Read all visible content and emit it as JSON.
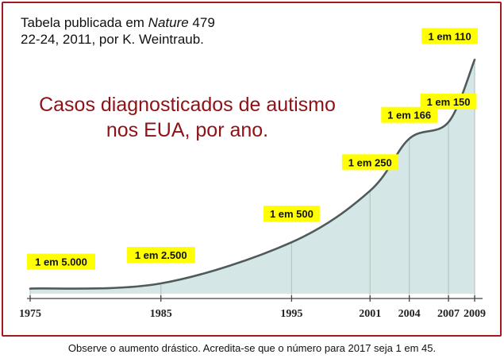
{
  "source_note": {
    "line1_prefix": "Tabela publicada em ",
    "line1_italic": "Nature",
    "line1_suffix": " 479",
    "line2": "22-24, 2011, por K. Weintraub."
  },
  "caption": "Observe o aumento drástico. Acredita-se que o número para 2017 seja 1 em 45.",
  "colors": {
    "frame": "#a11a1f",
    "title": "#8e1216",
    "fill": "#d4e6e6",
    "curve": "#4f5b5a",
    "label_bg": "#ffff00"
  },
  "chart_data": {
    "type": "area",
    "title": "Casos diagnosticados de autismo nos EUA, por ano.",
    "title_lines": [
      "Casos diagnosticados de autismo",
      "nos EUA, por ano."
    ],
    "x": [
      1975,
      1985,
      1995,
      2001,
      2004,
      2007,
      2009
    ],
    "x_tick_labels": [
      "1975",
      "1985",
      "1995",
      "2001",
      "2004",
      "2007",
      "2009"
    ],
    "labels": [
      "1 em 5.000",
      "1 em 2.500",
      "1 em 500",
      "1 em 250",
      "1 em 166",
      "1 em 150",
      "1 em 110"
    ],
    "y": [
      0.0002,
      0.0004,
      0.002,
      0.004,
      0.006024,
      0.006667,
      0.009091
    ],
    "xlim": [
      1975,
      2009
    ],
    "ylim": [
      0,
      0.0095
    ],
    "grid": false,
    "legend": "none"
  }
}
